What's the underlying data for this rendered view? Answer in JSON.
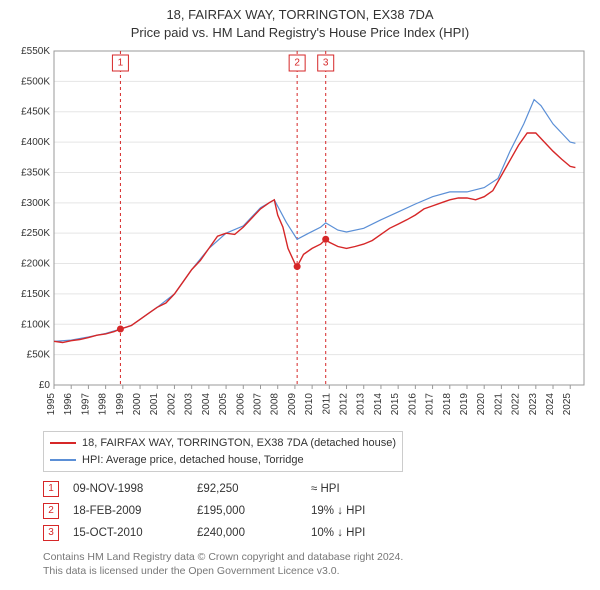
{
  "title": {
    "line1": "18, FAIRFAX WAY, TORRINGTON, EX38 7DA",
    "line2": "Price paid vs. HM Land Registry's House Price Index (HPI)",
    "fontsize": 13,
    "color": "#333333"
  },
  "chart": {
    "type": "line",
    "background_color": "#ffffff",
    "plot_background": "#ffffff",
    "grid_color": "#e5e5e5",
    "border_color": "#999999",
    "xlim": [
      1995,
      2025.8
    ],
    "ylim": [
      0,
      550000
    ],
    "ytick_step": 50000,
    "yticks": [
      "£0",
      "£50K",
      "£100K",
      "£150K",
      "£200K",
      "£250K",
      "£300K",
      "£350K",
      "£400K",
      "£450K",
      "£500K",
      "£550K"
    ],
    "xticks": [
      1995,
      1996,
      1997,
      1998,
      1999,
      2000,
      2001,
      2002,
      2003,
      2004,
      2005,
      2006,
      2007,
      2008,
      2009,
      2010,
      2011,
      2012,
      2013,
      2014,
      2015,
      2016,
      2017,
      2018,
      2019,
      2020,
      2021,
      2022,
      2023,
      2024,
      2025
    ],
    "tick_fontsize": 10,
    "property_series": {
      "label": "18, FAIRFAX WAY, TORRINGTON, EX38 7DA (detached house)",
      "color": "#d62728",
      "line_width": 1.4,
      "data": [
        [
          1995.0,
          72000
        ],
        [
          1995.5,
          70000
        ],
        [
          1996.0,
          73000
        ],
        [
          1996.5,
          75000
        ],
        [
          1997.0,
          78000
        ],
        [
          1997.5,
          82000
        ],
        [
          1998.0,
          84000
        ],
        [
          1998.5,
          88000
        ],
        [
          1998.86,
          92250
        ],
        [
          1999.5,
          98000
        ],
        [
          2000.0,
          108000
        ],
        [
          2000.5,
          118000
        ],
        [
          2001.0,
          128000
        ],
        [
          2001.5,
          135000
        ],
        [
          2002.0,
          150000
        ],
        [
          2002.5,
          170000
        ],
        [
          2003.0,
          190000
        ],
        [
          2003.5,
          205000
        ],
        [
          2004.0,
          225000
        ],
        [
          2004.5,
          245000
        ],
        [
          2005.0,
          250000
        ],
        [
          2005.5,
          248000
        ],
        [
          2006.0,
          260000
        ],
        [
          2006.5,
          275000
        ],
        [
          2007.0,
          290000
        ],
        [
          2007.5,
          300000
        ],
        [
          2007.8,
          305000
        ],
        [
          2008.0,
          280000
        ],
        [
          2008.3,
          260000
        ],
        [
          2008.6,
          225000
        ],
        [
          2009.0,
          200000
        ],
        [
          2009.13,
          195000
        ],
        [
          2009.5,
          215000
        ],
        [
          2010.0,
          225000
        ],
        [
          2010.5,
          232000
        ],
        [
          2010.79,
          240000
        ],
        [
          2011.0,
          235000
        ],
        [
          2011.5,
          228000
        ],
        [
          2012.0,
          225000
        ],
        [
          2012.5,
          228000
        ],
        [
          2013.0,
          232000
        ],
        [
          2013.5,
          238000
        ],
        [
          2014.0,
          248000
        ],
        [
          2014.5,
          258000
        ],
        [
          2015.0,
          265000
        ],
        [
          2015.5,
          272000
        ],
        [
          2016.0,
          280000
        ],
        [
          2016.5,
          290000
        ],
        [
          2017.0,
          295000
        ],
        [
          2017.5,
          300000
        ],
        [
          2018.0,
          305000
        ],
        [
          2018.5,
          308000
        ],
        [
          2019.0,
          308000
        ],
        [
          2019.5,
          305000
        ],
        [
          2020.0,
          310000
        ],
        [
          2020.5,
          320000
        ],
        [
          2021.0,
          345000
        ],
        [
          2021.5,
          370000
        ],
        [
          2022.0,
          395000
        ],
        [
          2022.5,
          415000
        ],
        [
          2023.0,
          415000
        ],
        [
          2023.5,
          400000
        ],
        [
          2024.0,
          385000
        ],
        [
          2024.5,
          372000
        ],
        [
          2025.0,
          360000
        ],
        [
          2025.3,
          358000
        ]
      ],
      "sale_points": [
        {
          "n": "1",
          "x": 1998.86,
          "y": 92250,
          "color": "#d62728"
        },
        {
          "n": "2",
          "x": 2009.13,
          "y": 195000,
          "color": "#d62728"
        },
        {
          "n": "3",
          "x": 2010.79,
          "y": 240000,
          "color": "#d62728"
        }
      ]
    },
    "hpi_series": {
      "label": "HPI: Average price, detached house, Torridge",
      "color": "#5b8fd6",
      "line_width": 1.2,
      "data": [
        [
          1995.0,
          72000
        ],
        [
          1996.0,
          74000
        ],
        [
          1997.0,
          79000
        ],
        [
          1998.0,
          85000
        ],
        [
          1998.86,
          92000
        ],
        [
          1999.5,
          98000
        ],
        [
          2000.0,
          108000
        ],
        [
          2001.0,
          128000
        ],
        [
          2002.0,
          150000
        ],
        [
          2003.0,
          190000
        ],
        [
          2004.0,
          225000
        ],
        [
          2005.0,
          250000
        ],
        [
          2006.0,
          262000
        ],
        [
          2007.0,
          292000
        ],
        [
          2007.8,
          305000
        ],
        [
          2008.5,
          268000
        ],
        [
          2009.13,
          240000
        ],
        [
          2009.8,
          250000
        ],
        [
          2010.5,
          260000
        ],
        [
          2010.79,
          267000
        ],
        [
          2011.5,
          255000
        ],
        [
          2012.0,
          252000
        ],
        [
          2013.0,
          258000
        ],
        [
          2014.0,
          272000
        ],
        [
          2015.0,
          285000
        ],
        [
          2016.0,
          298000
        ],
        [
          2017.0,
          310000
        ],
        [
          2018.0,
          318000
        ],
        [
          2019.0,
          318000
        ],
        [
          2020.0,
          325000
        ],
        [
          2020.8,
          340000
        ],
        [
          2021.5,
          385000
        ],
        [
          2022.3,
          430000
        ],
        [
          2022.9,
          470000
        ],
        [
          2023.3,
          460000
        ],
        [
          2024.0,
          430000
        ],
        [
          2024.5,
          415000
        ],
        [
          2025.0,
          400000
        ],
        [
          2025.3,
          398000
        ]
      ]
    },
    "sale_markers": [
      {
        "n": "1",
        "x": 1998.86,
        "color": "#d62728",
        "line_dash": "3,3"
      },
      {
        "n": "2",
        "x": 2009.13,
        "color": "#d62728",
        "line_dash": "3,3"
      },
      {
        "n": "3",
        "x": 2010.79,
        "color": "#d62728",
        "line_dash": "3,3"
      }
    ]
  },
  "legend": {
    "items": [
      {
        "color": "#d62728",
        "label": "18, FAIRFAX WAY, TORRINGTON, EX38 7DA (detached house)"
      },
      {
        "color": "#5b8fd6",
        "label": "HPI: Average price, detached house, Torridge"
      }
    ],
    "border_color": "#cccccc",
    "fontsize": 11
  },
  "sales_table": {
    "rows": [
      {
        "n": "1",
        "n_color": "#d62728",
        "date": "09-NOV-1998",
        "price": "£92,250",
        "delta": "≈ HPI"
      },
      {
        "n": "2",
        "n_color": "#d62728",
        "date": "18-FEB-2009",
        "price": "£195,000",
        "delta": "19% ↓ HPI"
      },
      {
        "n": "3",
        "n_color": "#d62728",
        "date": "15-OCT-2010",
        "price": "£240,000",
        "delta": "10% ↓ HPI"
      }
    ]
  },
  "footnote": {
    "line1": "Contains HM Land Registry data © Crown copyright and database right 2024.",
    "line2": "This data is licensed under the Open Government Licence v3.0.",
    "color": "#777777"
  }
}
